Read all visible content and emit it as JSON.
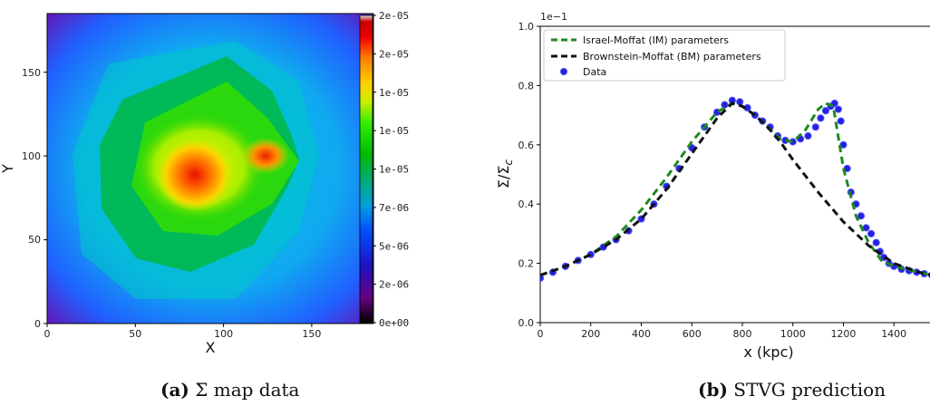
{
  "chart_data": [
    {
      "type": "heatmap",
      "xlabel": "X",
      "ylabel": "Y",
      "xlim": [
        0,
        185
      ],
      "ylim": [
        0,
        185
      ],
      "xticks": [
        0,
        50,
        100,
        150
      ],
      "yticks": [
        0,
        50,
        100,
        150
      ],
      "colorbar": {
        "ticks": [
          "0e+00",
          "2e-06",
          "5e-06",
          "7e-06",
          "1e-05",
          "1e-05",
          "1e-05",
          "2e-05",
          "2e-05"
        ],
        "min": 0,
        "max": 2e-05,
        "colormap": "nipy_spectral"
      },
      "peaks": [
        {
          "x": 90,
          "y": 88,
          "value": 1.6e-05
        },
        {
          "x": 135,
          "y": 101,
          "value": 1.5e-05
        }
      ],
      "caption_label": "(a)",
      "caption_text": "Σ map data"
    },
    {
      "type": "line",
      "xlabel": "x (kpc)",
      "ylabel": "Σ/Σc",
      "ylabel_main": "Σ/Σ",
      "ylabel_sub": "c",
      "y_multiplier": "1e−1",
      "xlim": [
        0,
        1550
      ],
      "ylim": [
        0,
        1.0
      ],
      "xticks": [
        "0",
        "200",
        "400",
        "600",
        "800",
        "1000",
        "1200",
        "1400"
      ],
      "yticks": [
        "0.0",
        "0.2",
        "0.4",
        "0.6",
        "0.8",
        "1.0"
      ],
      "legend_position": "upper-left",
      "series": [
        {
          "name": "Israel-Moffat (IM) parameters",
          "style": "dashed",
          "color": "#1e8a1e",
          "x": [
            0,
            100,
            200,
            300,
            400,
            500,
            600,
            700,
            760,
            800,
            850,
            900,
            950,
            1000,
            1050,
            1100,
            1130,
            1160,
            1200,
            1250,
            1300,
            1350,
            1400,
            1450,
            1500,
            1550
          ],
          "y": [
            0.16,
            0.19,
            0.23,
            0.29,
            0.38,
            0.49,
            0.61,
            0.71,
            0.74,
            0.73,
            0.7,
            0.66,
            0.62,
            0.61,
            0.65,
            0.72,
            0.74,
            0.73,
            0.52,
            0.36,
            0.27,
            0.21,
            0.19,
            0.18,
            0.17,
            0.16
          ]
        },
        {
          "name": "Brownstein-Moffat (BM) parameters",
          "style": "dashed",
          "color": "#111111",
          "x": [
            0,
            100,
            200,
            300,
            400,
            500,
            600,
            700,
            760,
            800,
            850,
            900,
            950,
            1000,
            1100,
            1200,
            1300,
            1400,
            1500,
            1550
          ],
          "y": [
            0.16,
            0.19,
            0.23,
            0.28,
            0.35,
            0.45,
            0.57,
            0.69,
            0.74,
            0.73,
            0.7,
            0.66,
            0.61,
            0.55,
            0.44,
            0.34,
            0.26,
            0.2,
            0.17,
            0.16
          ]
        },
        {
          "name": "Data",
          "style": "markers",
          "color": "#2222dd",
          "x": [
            0,
            50,
            100,
            150,
            200,
            250,
            300,
            350,
            400,
            450,
            500,
            550,
            600,
            650,
            700,
            730,
            760,
            790,
            820,
            850,
            880,
            910,
            940,
            970,
            1000,
            1030,
            1060,
            1090,
            1110,
            1130,
            1150,
            1165,
            1180,
            1190,
            1200,
            1215,
            1230,
            1250,
            1270,
            1290,
            1310,
            1330,
            1345,
            1360,
            1380,
            1400,
            1430,
            1460,
            1490,
            1520,
            1550
          ],
          "y": [
            0.15,
            0.17,
            0.19,
            0.21,
            0.23,
            0.255,
            0.28,
            0.31,
            0.35,
            0.4,
            0.46,
            0.52,
            0.59,
            0.66,
            0.71,
            0.735,
            0.75,
            0.745,
            0.725,
            0.7,
            0.68,
            0.66,
            0.63,
            0.615,
            0.61,
            0.62,
            0.63,
            0.66,
            0.69,
            0.715,
            0.73,
            0.74,
            0.72,
            0.68,
            0.6,
            0.52,
            0.44,
            0.4,
            0.36,
            0.32,
            0.3,
            0.27,
            0.24,
            0.22,
            0.2,
            0.19,
            0.18,
            0.175,
            0.17,
            0.165,
            0.16
          ]
        }
      ],
      "caption_label": "(b)",
      "caption_text": "STVG prediction"
    }
  ]
}
